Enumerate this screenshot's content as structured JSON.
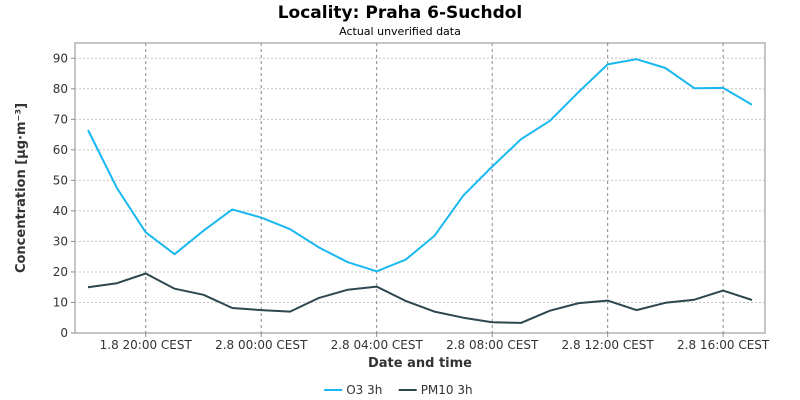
{
  "chart_data": {
    "type": "line",
    "title": "Locality: Praha 6-Suchdol",
    "subtitle": "Actual unverified data",
    "xlabel": "Date and time",
    "ylabel": "Concentration [µg·m⁻³]",
    "ylim": [
      0,
      95
    ],
    "yticks": [
      0,
      10,
      20,
      30,
      40,
      50,
      60,
      70,
      80,
      90
    ],
    "xticks": [
      "1.8 20:00 CEST",
      "2.8 00:00 CEST",
      "2.8 04:00 CEST",
      "2.8 08:00 CEST",
      "2.8 12:00 CEST",
      "2.8 16:00 CEST"
    ],
    "x": [
      "1.8 18:00",
      "1.8 19:00",
      "1.8 20:00",
      "1.8 21:00",
      "1.8 22:00",
      "1.8 23:00",
      "2.8 00:00",
      "2.8 01:00",
      "2.8 02:00",
      "2.8 03:00",
      "2.8 04:00",
      "2.8 05:00",
      "2.8 06:00",
      "2.8 07:00",
      "2.8 08:00",
      "2.8 09:00",
      "2.8 10:00",
      "2.8 11:00",
      "2.8 12:00",
      "2.8 13:00",
      "2.8 14:00",
      "2.8 15:00",
      "2.8 16:00",
      "2.8 17:00"
    ],
    "grid": true,
    "legend_position": "bottom",
    "series": [
      {
        "name": "O3 3h",
        "color": "#1ab8f0",
        "values": [
          66.5,
          47.5,
          33,
          25.8,
          33.5,
          40.5,
          37.8,
          34,
          28,
          23.2,
          20.2,
          24,
          31.8,
          45,
          54.5,
          63.5,
          69.5,
          79,
          88,
          89.7,
          86.8,
          80.2,
          80.3,
          74.8
        ]
      },
      {
        "name": "PM10 3h",
        "color": "#2e4650",
        "values": [
          15,
          16.3,
          19.5,
          14.5,
          12.5,
          8.2,
          7.5,
          7,
          11.5,
          14.2,
          15.2,
          10.5,
          7,
          5,
          3.5,
          3.3,
          7.3,
          9.8,
          10.6,
          7.5,
          9.9,
          10.9,
          13.9,
          10.8
        ]
      }
    ]
  }
}
